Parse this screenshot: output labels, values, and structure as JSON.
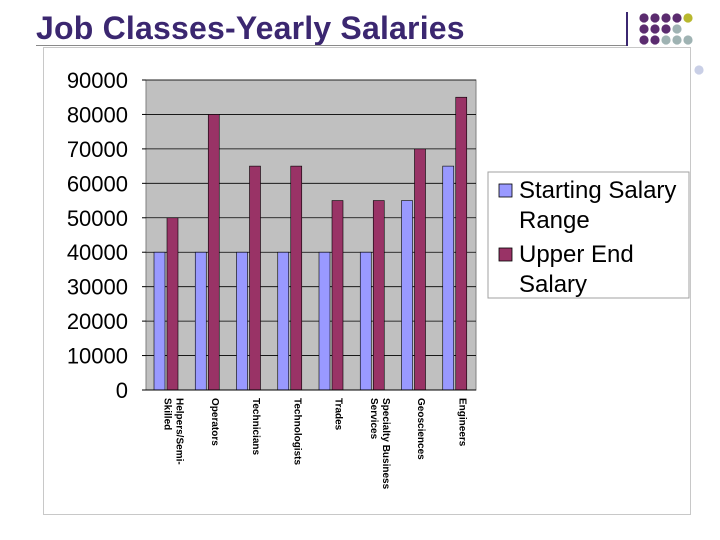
{
  "slide": {
    "title": "Job Classes-Yearly Salaries"
  },
  "colors": {
    "title": "#3b2770",
    "plot_background": "#c0c0c0",
    "starting": "#9999ff",
    "upper": "#993366",
    "corner_purple": "#5b2c6f",
    "corner_olive": "#b8b82e",
    "corner_gray": "#9fb3b3"
  },
  "chart_data": {
    "type": "bar",
    "title": "",
    "xlabel": "",
    "ylabel": "",
    "ylim": [
      0,
      90000
    ],
    "yticks": [
      0,
      10000,
      20000,
      30000,
      40000,
      50000,
      60000,
      70000,
      80000,
      90000
    ],
    "grid": true,
    "legend_position": "right",
    "categories": [
      [
        "Helpers/Semi-",
        "Skilled"
      ],
      [
        "Operators"
      ],
      [
        "Technicians"
      ],
      [
        "Technologists"
      ],
      [
        "Trades"
      ],
      [
        "Specialty Business",
        "Services"
      ],
      [
        "Geosciences"
      ],
      [
        "Engineers"
      ]
    ],
    "series": [
      {
        "name": [
          "Starting Salary",
          "Range"
        ],
        "color": "#9999ff",
        "values": [
          40000,
          40000,
          40000,
          40000,
          40000,
          40000,
          55000,
          65000
        ]
      },
      {
        "name": [
          "Upper End",
          "Salary"
        ],
        "color": "#993366",
        "values": [
          50000,
          80000,
          65000,
          65000,
          55000,
          55000,
          70000,
          85000
        ]
      }
    ]
  }
}
